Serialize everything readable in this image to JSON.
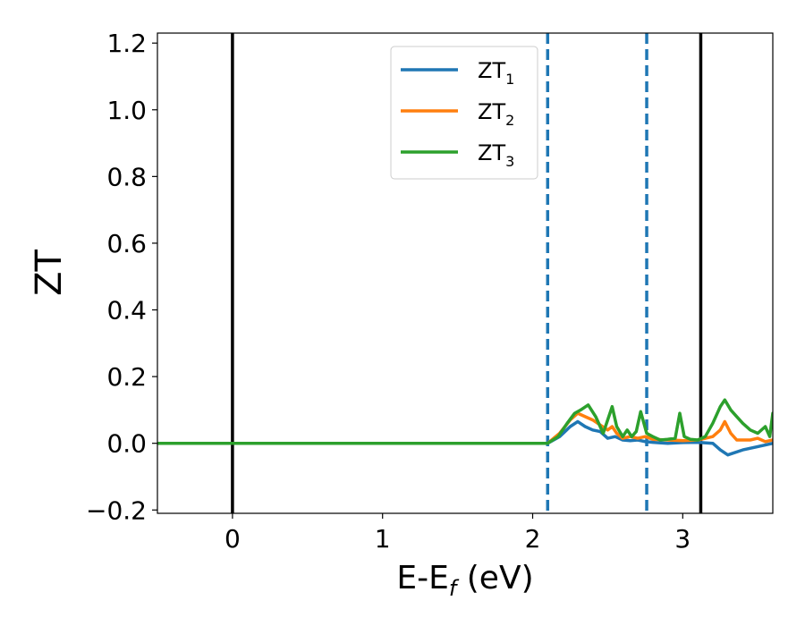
{
  "chart_data": {
    "type": "line",
    "title": "",
    "xlabel": "E-E",
    "xlabel_sub": "f",
    "xlabel_unit": " (eV)",
    "ylabel": "ZT",
    "xlim": [
      -0.5,
      3.6
    ],
    "ylim": [
      -0.21,
      1.23
    ],
    "xticks": [
      0,
      1,
      2,
      3
    ],
    "xtick_labels": [
      "0",
      "1",
      "2",
      "3"
    ],
    "yticks": [
      -0.2,
      0.0,
      0.2,
      0.4,
      0.6,
      0.8,
      1.0,
      1.2
    ],
    "ytick_labels": [
      "−0.2",
      "0.0",
      "0.2",
      "0.4",
      "0.6",
      "0.8",
      "1.0",
      "1.2"
    ],
    "grid": false,
    "legend_position": "top-center",
    "vertical_lines": [
      {
        "x": 0.0,
        "style": "solid",
        "color": "#000000"
      },
      {
        "x": 2.1,
        "style": "dashed",
        "color": "#1f77b4"
      },
      {
        "x": 2.76,
        "style": "dashed",
        "color": "#1f77b4"
      },
      {
        "x": 3.12,
        "style": "solid",
        "color": "#000000"
      }
    ],
    "series": [
      {
        "name": "ZT",
        "name_sub": "1",
        "color": "#1f77b4",
        "x": [
          -0.5,
          2.1,
          2.18,
          2.25,
          2.3,
          2.35,
          2.4,
          2.45,
          2.5,
          2.55,
          2.6,
          2.65,
          2.7,
          2.75,
          2.8,
          2.9,
          3.0,
          3.1,
          3.2,
          3.25,
          3.3,
          3.4,
          3.5,
          3.6
        ],
        "values": [
          0.0,
          0.0,
          0.02,
          0.05,
          0.065,
          0.05,
          0.04,
          0.035,
          0.015,
          0.02,
          0.01,
          0.008,
          0.01,
          0.005,
          0.003,
          0.0,
          0.002,
          0.003,
          0.0,
          -0.02,
          -0.035,
          -0.02,
          -0.01,
          0.0
        ]
      },
      {
        "name": "ZT",
        "name_sub": "2",
        "color": "#ff7f0e",
        "x": [
          -0.5,
          2.1,
          2.18,
          2.25,
          2.3,
          2.35,
          2.4,
          2.45,
          2.5,
          2.53,
          2.56,
          2.6,
          2.65,
          2.7,
          2.75,
          2.8,
          2.9,
          3.0,
          3.1,
          3.2,
          3.25,
          3.28,
          3.32,
          3.36,
          3.45,
          3.5,
          3.55,
          3.6
        ],
        "values": [
          0.0,
          0.0,
          0.03,
          0.07,
          0.09,
          0.08,
          0.07,
          0.055,
          0.04,
          0.05,
          0.03,
          0.015,
          0.02,
          0.015,
          0.02,
          0.012,
          0.01,
          0.008,
          0.01,
          0.02,
          0.04,
          0.065,
          0.03,
          0.01,
          0.01,
          0.015,
          0.005,
          0.01
        ]
      },
      {
        "name": "ZT",
        "name_sub": "3",
        "color": "#2ca02c",
        "x": [
          -0.5,
          2.1,
          2.17,
          2.23,
          2.28,
          2.32,
          2.37,
          2.42,
          2.47,
          2.5,
          2.53,
          2.56,
          2.6,
          2.63,
          2.66,
          2.69,
          2.72,
          2.76,
          2.8,
          2.85,
          2.9,
          2.95,
          2.98,
          3.01,
          3.05,
          3.1,
          3.15,
          3.2,
          3.25,
          3.28,
          3.32,
          3.36,
          3.4,
          3.45,
          3.5,
          3.55,
          3.58,
          3.6
        ],
        "values": [
          0.0,
          0.0,
          0.02,
          0.06,
          0.09,
          0.1,
          0.115,
          0.08,
          0.03,
          0.07,
          0.11,
          0.05,
          0.02,
          0.04,
          0.02,
          0.035,
          0.095,
          0.03,
          0.02,
          0.01,
          0.012,
          0.015,
          0.09,
          0.02,
          0.012,
          0.01,
          0.02,
          0.06,
          0.11,
          0.13,
          0.1,
          0.08,
          0.06,
          0.04,
          0.03,
          0.05,
          0.02,
          0.09
        ]
      }
    ]
  }
}
